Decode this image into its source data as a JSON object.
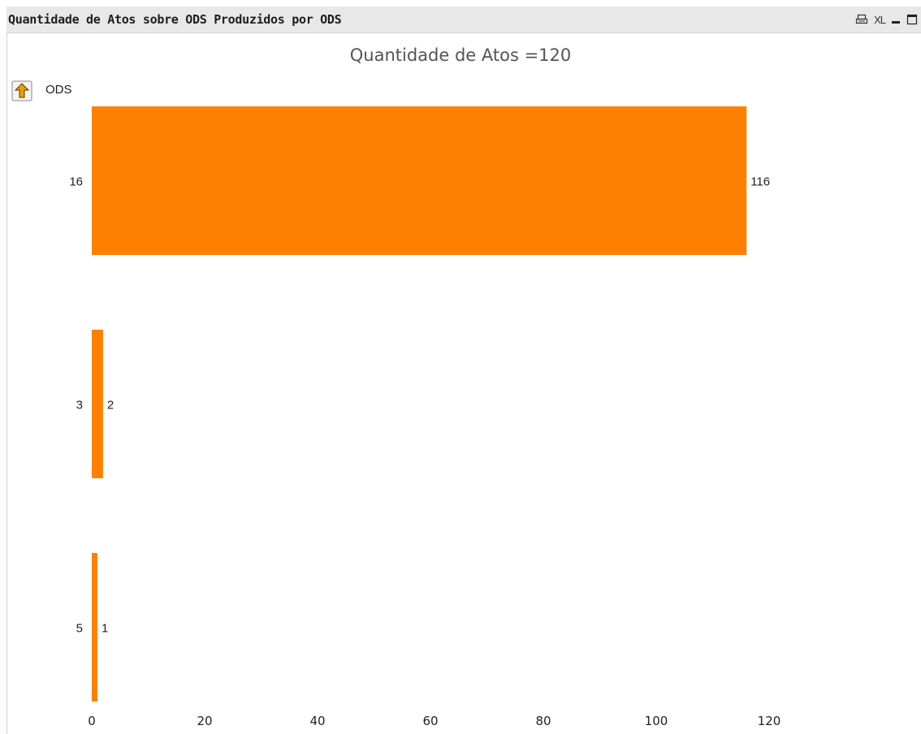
{
  "window": {
    "caption_title": "Quantidade de Atos sobre ODS Produzidos por ODS",
    "icons": [
      "print-icon",
      "xl-export-icon",
      "minimize-icon",
      "maximize-icon"
    ],
    "xl_label": "XL"
  },
  "chart_data": {
    "type": "bar",
    "orientation": "horizontal",
    "title": "Quantidade de Atos =120",
    "dimension_label": "ODS",
    "categories": [
      "16",
      "3",
      "5"
    ],
    "values": [
      116,
      2,
      1
    ],
    "value_labels": [
      "116",
      "2",
      "1"
    ],
    "xlim": [
      0,
      120
    ],
    "x_ticks": [
      0,
      20,
      40,
      60,
      80,
      100,
      120
    ],
    "x_tick_labels": [
      "0",
      "20",
      "40",
      "60",
      "80",
      "100",
      "120"
    ],
    "bar_color": "#ff8000",
    "grid": false,
    "legend": "none"
  }
}
